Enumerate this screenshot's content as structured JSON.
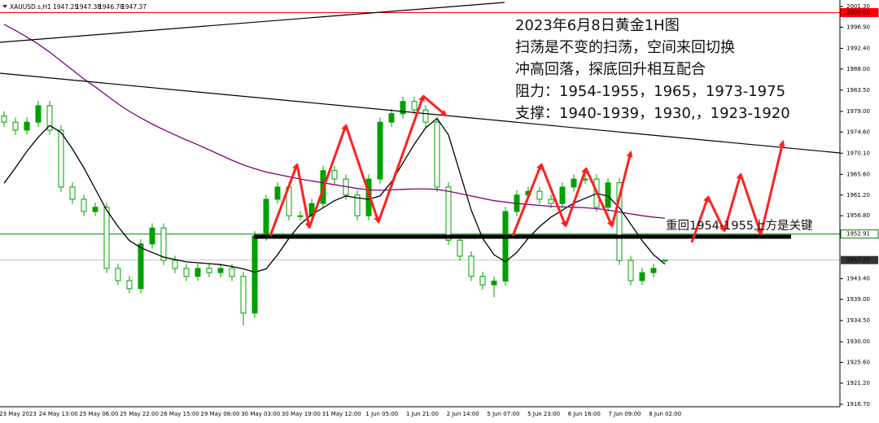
{
  "chart_data": {
    "type": "candlestick",
    "symbol": "XAUUSD.s,H1",
    "candle_color": "#00a000",
    "open": [
      1978.0,
      1976.7,
      1975.0,
      1976.7,
      1980.2,
      1975.0,
      1962.9,
      1960.3,
      1957.7,
      1958.6,
      1945.6,
      1943.0,
      1941.3,
      1950.8,
      1954.2,
      1947.3,
      1945.6,
      1943.9,
      1945.6,
      1944.7,
      1945.6,
      1943.9,
      1936.1,
      1952.5,
      1960.3,
      1962.9,
      1956.8,
      1956.8,
      1959.4,
      1966.4,
      1964.6,
      1961.2,
      1956.8,
      1964.6,
      1976.7,
      1978.5,
      1981.1,
      1979.3,
      1976.7,
      1962.9,
      1951.6,
      1948.2,
      1943.9,
      1942.1,
      1942.9,
      1957.7,
      1961.2,
      1962.0,
      1960.3,
      1959.4,
      1962.9,
      1964.6,
      1964.6,
      1958.6,
      1963.8,
      1947.3,
      1943.0,
      1944.7,
      1947.25
    ],
    "high": [
      1979.0,
      1977.7,
      1977.7,
      1981.2,
      1981.2,
      1976.0,
      1963.9,
      1961.3,
      1959.6,
      1959.6,
      1946.6,
      1944.0,
      1951.8,
      1955.2,
      1955.2,
      1948.3,
      1946.6,
      1946.6,
      1946.6,
      1946.6,
      1946.6,
      1944.9,
      1953.5,
      1961.3,
      1963.9,
      1963.9,
      1957.8,
      1960.4,
      1967.4,
      1967.4,
      1965.6,
      1962.2,
      1965.6,
      1977.7,
      1979.5,
      1982.1,
      1982.1,
      1980.3,
      1977.7,
      1963.9,
      1952.6,
      1949.2,
      1944.9,
      1943.9,
      1958.7,
      1962.2,
      1963.0,
      1963.0,
      1961.3,
      1963.9,
      1965.6,
      1965.6,
      1965.6,
      1964.8,
      1964.8,
      1948.3,
      1945.7,
      1946.6,
      1947.38
    ],
    "low": [
      1975.7,
      1974.0,
      1974.0,
      1975.7,
      1974.0,
      1961.9,
      1959.3,
      1956.7,
      1956.7,
      1944.6,
      1942.0,
      1940.3,
      1940.3,
      1949.8,
      1946.3,
      1944.6,
      1942.9,
      1942.9,
      1943.7,
      1943.7,
      1942.9,
      1933.5,
      1935.1,
      1951.5,
      1959.3,
      1955.8,
      1955.8,
      1955.8,
      1958.4,
      1963.6,
      1960.2,
      1955.8,
      1955.8,
      1963.6,
      1975.7,
      1977.5,
      1978.3,
      1975.7,
      1961.9,
      1950.6,
      1947.2,
      1942.9,
      1941.1,
      1939.5,
      1941.9,
      1956.7,
      1960.2,
      1959.3,
      1958.4,
      1958.4,
      1961.9,
      1963.6,
      1957.6,
      1957.6,
      1946.3,
      1942.0,
      1942.0,
      1943.7,
      1946.78
    ],
    "close": [
      1976.7,
      1975.0,
      1976.7,
      1980.2,
      1975.0,
      1962.9,
      1960.3,
      1957.7,
      1958.6,
      1945.6,
      1943.0,
      1941.3,
      1950.8,
      1954.2,
      1947.3,
      1945.6,
      1943.9,
      1945.6,
      1944.7,
      1945.6,
      1943.9,
      1936.1,
      1952.5,
      1960.3,
      1962.9,
      1956.8,
      1956.8,
      1959.4,
      1966.4,
      1964.6,
      1961.2,
      1956.8,
      1964.6,
      1976.7,
      1978.5,
      1981.1,
      1979.3,
      1976.7,
      1962.9,
      1951.6,
      1948.2,
      1943.9,
      1942.1,
      1942.9,
      1957.7,
      1961.2,
      1962.0,
      1960.3,
      1959.4,
      1962.9,
      1964.6,
      1964.6,
      1958.6,
      1963.8,
      1947.3,
      1943.0,
      1944.7,
      1945.6,
      1947.37
    ],
    "moving_averages": [
      {
        "color": "#000000",
        "values": [
          1963.7,
          1967.0,
          1970.5,
          1973.5,
          1976.0,
          1974.5,
          1971.0,
          1967.0,
          1962.5,
          1958.0,
          1954.5,
          1951.5,
          1950.0,
          1949.0,
          1948.0,
          1947.5,
          1947.0,
          1946.8,
          1946.6,
          1946.4,
          1946.0,
          1945.5,
          1944.8,
          1945.5,
          1948.5,
          1952.0,
          1955.0,
          1957.0,
          1958.5,
          1960.0,
          1961.0,
          1960.6,
          1960.3,
          1961.0,
          1964.0,
          1968.0,
          1972.0,
          1975.5,
          1977.5,
          1974.0,
          1966.0,
          1958.0,
          1952.0,
          1948.5,
          1947.0,
          1949.0,
          1952.0,
          1954.5,
          1956.5,
          1958.0,
          1959.5,
          1960.5,
          1961.5,
          1961.0,
          1958.5,
          1955.0,
          1951.5,
          1948.5,
          1946.5
        ]
      },
      {
        "color": "#800080",
        "values": [
          1997.5,
          1996.2,
          1994.8,
          1993.3,
          1991.6,
          1989.7,
          1987.8,
          1985.9,
          1984.2,
          1982.4,
          1980.6,
          1979.0,
          1977.6,
          1976.3,
          1975.1,
          1974.0,
          1972.9,
          1971.9,
          1970.8,
          1969.7,
          1968.6,
          1967.6,
          1966.8,
          1966.1,
          1965.6,
          1965.1,
          1964.6,
          1964.2,
          1963.8,
          1963.4,
          1963.0,
          1962.6,
          1962.3,
          1962.2,
          1962.3,
          1962.4,
          1962.5,
          1962.5,
          1962.4,
          1962.0,
          1961.5,
          1961.0,
          1960.5,
          1960.0,
          1959.7,
          1959.4,
          1959.2,
          1959.0,
          1958.8,
          1958.7,
          1958.6,
          1958.5,
          1958.3,
          1958.0,
          1957.6,
          1957.2,
          1956.8,
          1956.5,
          1956.3
        ]
      }
    ],
    "ylim": [
      1916.18,
      2002.68
    ],
    "yticks": [
      {
        "value": 2001.3,
        "label": "2001.30"
      },
      {
        "value": 1996.9,
        "label": "1996.90"
      },
      {
        "value": 1992.4,
        "label": "1992.40"
      },
      {
        "value": 1988,
        "label": "1988.00"
      },
      {
        "value": 1983.5,
        "label": "1983.50"
      },
      {
        "value": 1979,
        "label": "1979.00"
      },
      {
        "value": 1974.6,
        "label": "1974.60"
      },
      {
        "value": 1970.1,
        "label": "1970.10"
      },
      {
        "value": 1965.6,
        "label": "1965.60"
      },
      {
        "value": 1961.2,
        "label": "1961.20"
      },
      {
        "value": 1956.8,
        "label": "1956.80"
      },
      {
        "value": 1943.4,
        "label": "1943.40"
      },
      {
        "value": 1939,
        "label": "1939.00"
      },
      {
        "value": 1934.5,
        "label": "1934.50"
      },
      {
        "value": 1930,
        "label": "1930.00"
      },
      {
        "value": 1925.6,
        "label": "1925.60"
      },
      {
        "value": 1921.2,
        "label": "1921.20"
      },
      {
        "value": 1916.7,
        "label": "1916.70"
      }
    ],
    "x_labels": [
      "23 May 2023",
      "24 May 13:00",
      "25 May 06:00",
      "25 May 22:00",
      "26 May 15:00",
      "29 May 08:00",
      "30 May 03:00",
      "30 May 19:00",
      "31 May 12:00",
      "1 Jun 05:00",
      "1 Jun 21:00",
      "2 Jun 14:00",
      "5 Jun 07:00",
      "5 Jun 23:00",
      "6 Jun 16:00",
      "7 Jun 09:00",
      "8 Jun 02:00"
    ],
    "levels": [
      {
        "value": 2000,
        "label": "2000.00",
        "color": "#ff0000"
      },
      {
        "value": 1952.91,
        "label": "1952.91",
        "color": "#008000"
      }
    ],
    "annotations": [
      "2023年6月8日黄金1H图",
      "扫荡是不变的扫荡，空间来回切换",
      "冲高回落，探底回升相互配合",
      "阻力：1954-1955，1965，1973-1975",
      "支撑：1940-1939，1930,，1923-1920"
    ],
    "key_note": "重回1954-1955上方是关键"
  }
}
